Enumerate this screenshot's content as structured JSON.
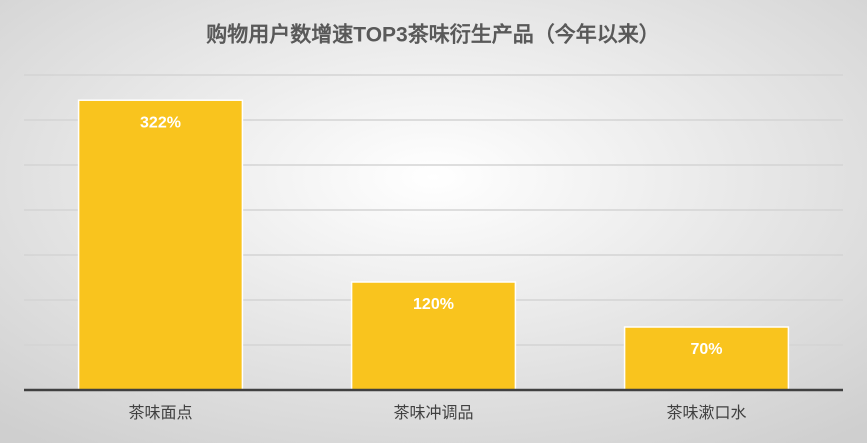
{
  "chart_data": {
    "type": "bar",
    "title": "购物用户数增速TOP3茶味衍生产品（今年以来）",
    "categories": [
      "茶味面点",
      "茶味冲调品",
      "茶味漱口水"
    ],
    "values": [
      322,
      120,
      70
    ],
    "value_labels": [
      "322%",
      "120%",
      "70%"
    ],
    "color": "#f9c41e",
    "ylim": [
      0,
      350
    ],
    "yticks": [
      0,
      50,
      100,
      150,
      200,
      250,
      300,
      350
    ],
    "grid": true
  }
}
